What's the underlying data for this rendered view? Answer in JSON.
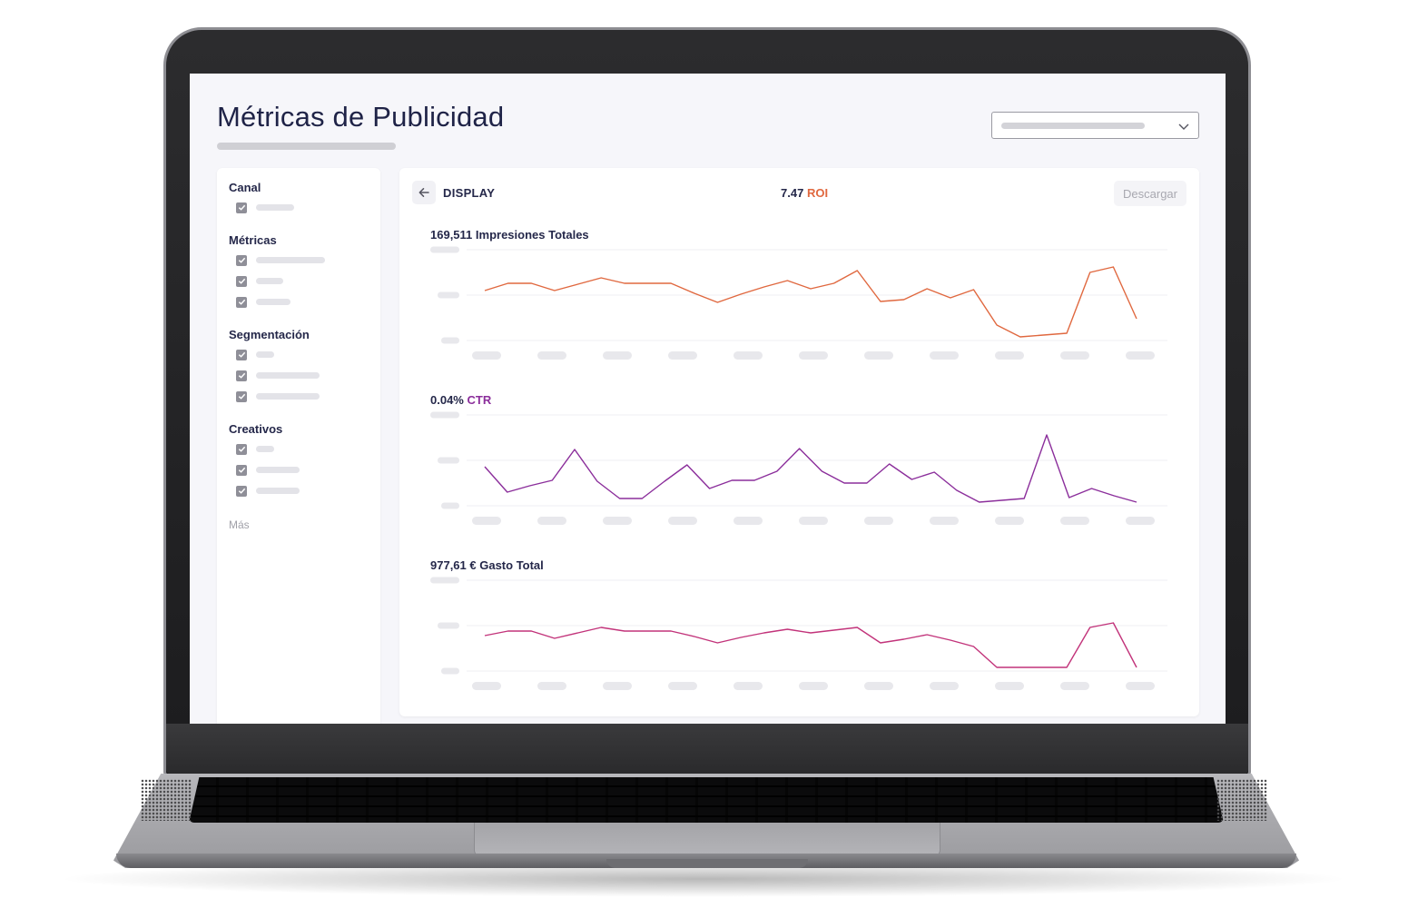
{
  "page": {
    "title": "Métricas de Publicidad"
  },
  "sidebar": {
    "sections": [
      {
        "heading": "Canal",
        "items": [
          {
            "checked": true
          }
        ]
      },
      {
        "heading": "Métricas",
        "items": [
          {
            "checked": true
          },
          {
            "checked": true
          },
          {
            "checked": true
          }
        ]
      },
      {
        "heading": "Segmentación",
        "items": [
          {
            "checked": true
          },
          {
            "checked": true
          },
          {
            "checked": true
          }
        ]
      },
      {
        "heading": "Creativos",
        "items": [
          {
            "checked": true
          },
          {
            "checked": true
          },
          {
            "checked": true
          }
        ]
      }
    ],
    "more_label": "Más"
  },
  "panel": {
    "channel": "DISPLAY",
    "roi_value": "7.47",
    "roi_label": "ROI",
    "download_label": "Descargar"
  },
  "charts": [
    {
      "value": "169,511",
      "label": "Impresiones Totales",
      "color": "#e0683f",
      "points": [
        55,
        63,
        63,
        55,
        62,
        69,
        63,
        63,
        63,
        52,
        42,
        51,
        59,
        66,
        57,
        63,
        77,
        43,
        45,
        57,
        47,
        56,
        17,
        4,
        6,
        8,
        75,
        81,
        24
      ]
    },
    {
      "value": "0.04%",
      "label": "CTR",
      "color": "#8b2e9b",
      "points": [
        43,
        15,
        22,
        28,
        62,
        27,
        8,
        8,
        27,
        45,
        19,
        28,
        28,
        38,
        63,
        38,
        25,
        25,
        46,
        29,
        37,
        17,
        4,
        6,
        8,
        78,
        9,
        19,
        11,
        4
      ]
    },
    {
      "value": "977,61 €",
      "label": "Gasto Total",
      "color": "#c2337a",
      "points": [
        39,
        44,
        44,
        36,
        42,
        48,
        44,
        44,
        44,
        38,
        31,
        37,
        42,
        46,
        42,
        45,
        48,
        31,
        35,
        40,
        34,
        27,
        4,
        4,
        4,
        4,
        48,
        53,
        4
      ]
    }
  ],
  "colors": {
    "screen_bg": "#f6f6fa",
    "heading": "#1f2347",
    "roi_accent": "#e0683f",
    "ctr_accent": "#8b2e9b",
    "checkbox": "#8f8f98"
  }
}
